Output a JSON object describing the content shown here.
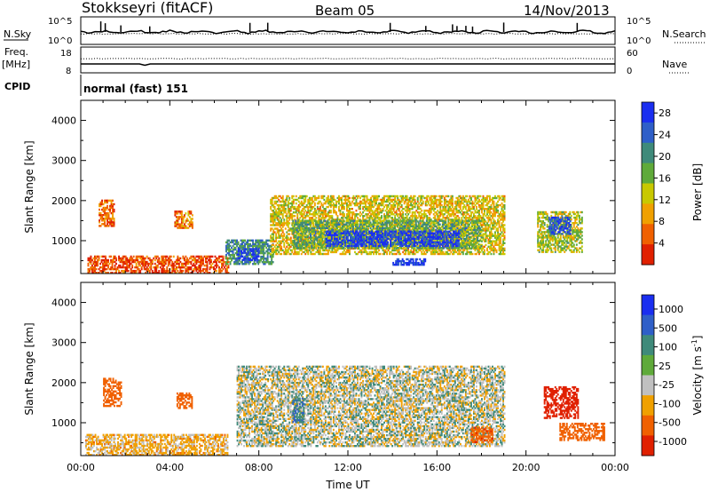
{
  "header": {
    "station": "Stokkseyri (fitACF)",
    "beam": "Beam 05",
    "date": "14/Nov/2013"
  },
  "nsky_panel": {
    "left_label": "N.Sky",
    "left_ticks": [
      "10^5",
      "10^0"
    ],
    "right_ticks": [
      "10^5",
      "10^0"
    ],
    "right_label": "N.Search"
  },
  "freq_panel": {
    "label_line1": "Freq.",
    "label_line2": "[MHz]",
    "left_ticks": [
      "18",
      "8"
    ],
    "right_ticks": [
      "60",
      "0"
    ],
    "right_label": "Nave"
  },
  "cpid": {
    "label": "CPID",
    "value": "normal (fast) 151"
  },
  "colors": {
    "power_scale": [
      "#1a2ef0",
      "#2f5fc8",
      "#3f8a7a",
      "#5faa3a",
      "#c8c800",
      "#f0a000",
      "#f06000",
      "#e02000"
    ],
    "velocity_scale": [
      "#1a2ef0",
      "#2f5fc8",
      "#3f8a7a",
      "#5faa3a",
      "#c0c0c0",
      "#f0a000",
      "#f06000",
      "#e02000"
    ]
  },
  "chart_data": [
    {
      "type": "heatmap",
      "title": "",
      "ylabel": "Slant Range [km]",
      "ylim": [
        180,
        4500
      ],
      "yticks": [
        "1000",
        "2000",
        "3000",
        "4000"
      ],
      "xlim": [
        0,
        24
      ],
      "colorbar": {
        "label": "Power [dB]",
        "ticks": [
          "4",
          "8",
          "12",
          "16",
          "20",
          "24",
          "28"
        ],
        "range": [
          0,
          30
        ]
      },
      "regions": [
        {
          "t0": 0.3,
          "t1": 6.6,
          "r0": 180,
          "r1": 600,
          "value": 4
        },
        {
          "t0": 0.8,
          "t1": 1.5,
          "r0": 1350,
          "r1": 2000,
          "value": 6
        },
        {
          "t0": 4.2,
          "t1": 5.0,
          "r0": 1300,
          "r1": 1750,
          "value": 7
        },
        {
          "t0": 6.5,
          "t1": 8.6,
          "r0": 400,
          "r1": 1000,
          "value": 20
        },
        {
          "t0": 7.0,
          "t1": 8.0,
          "r0": 500,
          "r1": 800,
          "value": 28
        },
        {
          "t0": 8.5,
          "t1": 19.0,
          "r0": 650,
          "r1": 2100,
          "value": 12
        },
        {
          "t0": 9.5,
          "t1": 18.0,
          "r0": 800,
          "r1": 1500,
          "value": 18
        },
        {
          "t0": 11.0,
          "t1": 17.0,
          "r0": 850,
          "r1": 1250,
          "value": 28
        },
        {
          "t0": 14.0,
          "t1": 15.5,
          "r0": 380,
          "r1": 520,
          "value": 27
        },
        {
          "t0": 20.5,
          "t1": 22.5,
          "r0": 700,
          "r1": 1700,
          "value": 14
        },
        {
          "t0": 21.0,
          "t1": 22.0,
          "r0": 1150,
          "r1": 1600,
          "value": 26
        }
      ]
    },
    {
      "type": "heatmap",
      "title": "",
      "ylabel": "Slant Range [km]",
      "xlabel": "Time UT",
      "ylim": [
        180,
        4500
      ],
      "yticks": [
        "1000",
        "2000",
        "3000",
        "4000"
      ],
      "xlim": [
        0,
        24
      ],
      "xticks": [
        "00:00",
        "04:00",
        "08:00",
        "12:00",
        "16:00",
        "20:00",
        "00:00"
      ],
      "colorbar": {
        "label": "Velocity [m s-1]",
        "label_main": "Velocity",
        "label_unit": "[m s",
        "label_exp": "-1",
        "label_close": "]",
        "ticks": [
          "1000",
          "500",
          "100",
          "25",
          "-25",
          "-100",
          "-500",
          "-1000"
        ]
      },
      "regions": [
        {
          "t0": 0.2,
          "t1": 6.6,
          "r0": 180,
          "r1": 700,
          "value": -50
        },
        {
          "t0": 1.0,
          "t1": 1.8,
          "r0": 1400,
          "r1": 2100,
          "value": -300
        },
        {
          "t0": 4.3,
          "t1": 5.0,
          "r0": 1350,
          "r1": 1750,
          "value": -200
        },
        {
          "t0": 7.0,
          "t1": 19.0,
          "r0": 400,
          "r1": 2400,
          "value": 0
        },
        {
          "t0": 9.5,
          "t1": 10.0,
          "r0": 1000,
          "r1": 1600,
          "value": 80
        },
        {
          "t0": 17.5,
          "t1": 18.5,
          "r0": 500,
          "r1": 900,
          "value": -450
        },
        {
          "t0": 20.8,
          "t1": 22.3,
          "r0": 1100,
          "r1": 1900,
          "value": -900
        },
        {
          "t0": 21.5,
          "t1": 23.5,
          "r0": 550,
          "r1": 1000,
          "value": -400
        }
      ]
    }
  ]
}
